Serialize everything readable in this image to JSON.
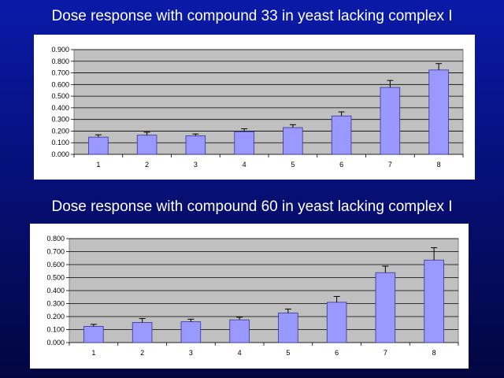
{
  "titles": [
    "Dose response with compound 33 in yeast lacking complex I",
    "Dose response with compound 60 in yeast lacking complex I"
  ],
  "colors": {
    "background_top": "#0a1aa8",
    "background_bottom": "#020640",
    "plot_area": "#c0c0c0",
    "bar_fill": "#9999ff",
    "bar_stroke": "#333399"
  },
  "chart_data": [
    {
      "type": "bar",
      "title": "Dose response with compound 33 in yeast lacking complex I",
      "categories": [
        "1",
        "2",
        "3",
        "4",
        "5",
        "6",
        "7",
        "8"
      ],
      "values": [
        0.148,
        0.165,
        0.16,
        0.195,
        0.23,
        0.33,
        0.575,
        0.725
      ],
      "errors": [
        0.02,
        0.025,
        0.015,
        0.025,
        0.025,
        0.035,
        0.06,
        0.055
      ],
      "ylim": [
        0,
        0.9
      ],
      "yticks": [
        "0.000",
        "0.100",
        "0.200",
        "0.300",
        "0.400",
        "0.500",
        "0.600",
        "0.700",
        "0.800",
        "0.900"
      ],
      "grid": true,
      "legend": "none"
    },
    {
      "type": "bar",
      "title": "Dose response with compound 60 in yeast lacking complex I",
      "categories": [
        "1",
        "2",
        "3",
        "4",
        "5",
        "6",
        "7",
        "8"
      ],
      "values": [
        0.125,
        0.155,
        0.16,
        0.175,
        0.228,
        0.31,
        0.538,
        0.635
      ],
      "errors": [
        0.015,
        0.03,
        0.02,
        0.02,
        0.03,
        0.045,
        0.05,
        0.095
      ],
      "ylim": [
        0,
        0.8
      ],
      "yticks": [
        "0.000",
        "0.100",
        "0.200",
        "0.300",
        "0.400",
        "0.500",
        "0.600",
        "0.700",
        "0.800"
      ],
      "grid": true,
      "legend": "none"
    }
  ]
}
